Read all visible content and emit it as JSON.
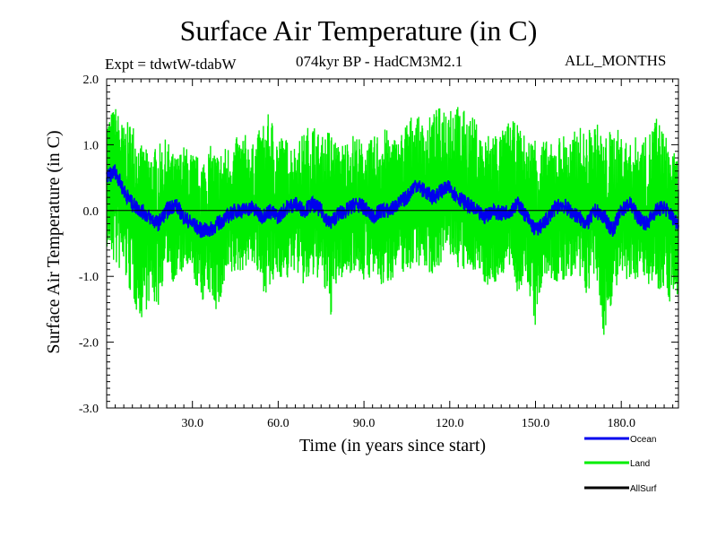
{
  "header": {
    "title": "Surface Air Temperature (in C)",
    "expt": "Expt = tdwtW-tdabW",
    "subtitle": "074kyr BP - HadCM3M2.1",
    "months": "ALL_MONTHS"
  },
  "colors": {
    "ocean": "#0000ee",
    "land": "#00ee00",
    "allsurf": "#000000",
    "axis": "#000000"
  },
  "chart_data": {
    "type": "line",
    "title": "Surface Air Temperature (in C)",
    "xlabel": "Time (in years since start)",
    "ylabel": "Surface Air Temperature (in C)",
    "xlim": [
      0,
      200
    ],
    "ylim": [
      -3.0,
      2.0
    ],
    "xticks": [
      30,
      60,
      90,
      120,
      150,
      180
    ],
    "xtick_labels": [
      "30.0",
      "60.0",
      "90.0",
      "120.0",
      "150.0",
      "180.0"
    ],
    "yticks": [
      -3.0,
      -2.0,
      -1.0,
      0.0,
      1.0,
      2.0
    ],
    "ytick_labels": [
      "-3.0",
      "-2.0",
      "-1.0",
      "0.0",
      "1.0",
      "2.0"
    ],
    "reference_line": 0.0,
    "grid": false,
    "legend_position": "bottom-right",
    "series": [
      {
        "name": "Land",
        "color": "#00ee00",
        "x": [
          0,
          3,
          6,
          9,
          12,
          15,
          18,
          21,
          24,
          27,
          30,
          33,
          36,
          39,
          42,
          45,
          48,
          51,
          54,
          57,
          60,
          63,
          66,
          69,
          72,
          75,
          78,
          81,
          84,
          87,
          90,
          93,
          96,
          99,
          102,
          105,
          108,
          111,
          114,
          117,
          120,
          123,
          126,
          129,
          132,
          135,
          138,
          141,
          144,
          147,
          150,
          153,
          156,
          159,
          162,
          165,
          168,
          171,
          174,
          177,
          180,
          183,
          186,
          189,
          192,
          195,
          198,
          200
        ],
        "min": [
          -0.6,
          -0.9,
          -1.0,
          -1.4,
          -1.7,
          -1.4,
          -1.5,
          -0.8,
          -1.2,
          -0.9,
          -1.0,
          -1.4,
          -1.3,
          -1.6,
          -1.1,
          -1.0,
          -0.9,
          -0.8,
          -1.2,
          -1.3,
          -1.0,
          -1.1,
          -0.9,
          -1.2,
          -1.1,
          -1.0,
          -1.7,
          -1.1,
          -1.0,
          -0.9,
          -1.1,
          -1.0,
          -1.2,
          -1.1,
          -0.9,
          -1.0,
          -0.8,
          -0.9,
          -1.0,
          -0.8,
          -0.7,
          -0.9,
          -1.0,
          -0.9,
          -1.1,
          -1.2,
          -1.0,
          -0.9,
          -1.3,
          -1.1,
          -1.8,
          -1.0,
          -1.1,
          -1.2,
          -1.0,
          -1.1,
          -1.3,
          -1.0,
          -2.0,
          -1.3,
          -1.1,
          -1.2,
          -1.0,
          -1.1,
          -1.2,
          -1.2,
          -1.5,
          -1.3
        ],
        "max": [
          1.4,
          1.6,
          1.3,
          1.4,
          1.0,
          0.9,
          1.0,
          1.1,
          0.8,
          1.0,
          0.9,
          0.8,
          1.0,
          0.9,
          1.0,
          1.1,
          1.2,
          1.0,
          1.3,
          1.5,
          1.2,
          1.1,
          1.0,
          1.2,
          1.4,
          1.1,
          1.3,
          1.0,
          1.1,
          1.2,
          1.0,
          1.1,
          1.3,
          1.2,
          1.1,
          1.4,
          1.5,
          1.3,
          1.5,
          1.6,
          1.8,
          1.6,
          1.5,
          1.4,
          1.1,
          1.3,
          1.2,
          1.4,
          1.3,
          1.1,
          1.2,
          1.1,
          1.0,
          1.2,
          1.1,
          1.3,
          1.2,
          1.4,
          1.1,
          1.3,
          1.2,
          1.0,
          1.2,
          1.1,
          1.5,
          1.2,
          0.9,
          0.8
        ]
      },
      {
        "name": "Ocean",
        "color": "#0000ee",
        "x": [
          0,
          3,
          6,
          9,
          12,
          15,
          18,
          21,
          24,
          27,
          30,
          33,
          36,
          39,
          42,
          45,
          48,
          51,
          54,
          57,
          60,
          63,
          66,
          69,
          72,
          75,
          78,
          81,
          84,
          87,
          90,
          93,
          96,
          99,
          102,
          105,
          108,
          111,
          114,
          117,
          120,
          123,
          126,
          129,
          132,
          135,
          138,
          141,
          144,
          147,
          150,
          153,
          156,
          159,
          162,
          165,
          168,
          171,
          174,
          177,
          180,
          183,
          186,
          189,
          192,
          195,
          198,
          200
        ],
        "values": [
          0.5,
          0.6,
          0.3,
          0.1,
          0.0,
          -0.1,
          -0.2,
          0.0,
          0.1,
          -0.1,
          -0.2,
          -0.3,
          -0.3,
          -0.2,
          -0.1,
          0.0,
          0.0,
          0.05,
          -0.1,
          0.0,
          -0.1,
          0.05,
          0.1,
          0.0,
          0.1,
          0.0,
          -0.2,
          -0.05,
          0.0,
          0.1,
          0.05,
          -0.1,
          0.0,
          0.0,
          0.1,
          0.2,
          0.4,
          0.3,
          0.2,
          0.3,
          0.35,
          0.2,
          0.1,
          0.0,
          -0.1,
          0.0,
          -0.05,
          0.0,
          0.1,
          -0.1,
          -0.3,
          -0.2,
          0.0,
          0.1,
          0.0,
          -0.1,
          -0.2,
          0.0,
          -0.1,
          -0.3,
          0.0,
          0.1,
          -0.1,
          -0.2,
          0.0,
          0.05,
          -0.1,
          -0.2
        ],
        "spread": 0.12
      },
      {
        "name": "AllSurf",
        "color": "#000000",
        "x": [],
        "values": []
      }
    ]
  }
}
